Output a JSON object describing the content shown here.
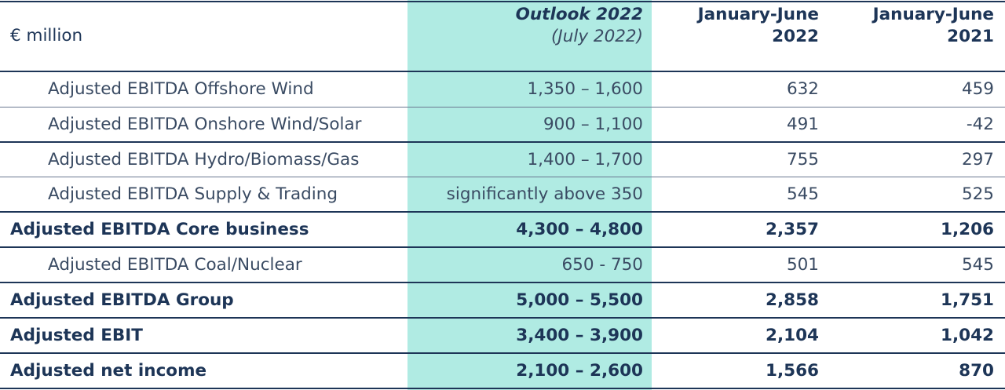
{
  "header": {
    "unit": "€ million",
    "outlook_line1": "Outlook 2022",
    "outlook_line2": "(July 2022)",
    "col2_line1": "January-June",
    "col2_line2": "2022",
    "col3_line1": "January-June",
    "col3_line2": "2021"
  },
  "rows": [
    {
      "label": "Adjusted EBITDA Offshore Wind",
      "outlook": "1,350 – 1,600",
      "h1_2022": "632",
      "h1_2021": "459"
    },
    {
      "label": "Adjusted EBITDA Onshore Wind/Solar",
      "outlook": "900 – 1,100",
      "h1_2022": "491",
      "h1_2021": "-42"
    },
    {
      "label": "Adjusted EBITDA Hydro/Biomass/Gas",
      "outlook": "1,400 – 1,700",
      "h1_2022": "755",
      "h1_2021": "297"
    },
    {
      "label": "Adjusted EBITDA Supply & Trading",
      "outlook": "significantly above 350",
      "h1_2022": "545",
      "h1_2021": "525"
    },
    {
      "label": "Adjusted EBITDA Core business",
      "outlook": "4,300 – 4,800",
      "h1_2022": "2,357",
      "h1_2021": "1,206"
    },
    {
      "label": "Adjusted EBITDA Coal/Nuclear",
      "outlook": "650 - 750",
      "h1_2022": "501",
      "h1_2021": "545"
    },
    {
      "label": "Adjusted EBITDA Group",
      "outlook": "5,000 – 5,500",
      "h1_2022": "2,858",
      "h1_2021": "1,751"
    },
    {
      "label": "Adjusted EBIT",
      "outlook": "3,400 – 3,900",
      "h1_2022": "2,104",
      "h1_2021": "1,042"
    },
    {
      "label": "Adjusted net income",
      "outlook": "2,100 – 2,600",
      "h1_2022": "1,566",
      "h1_2021": "870"
    }
  ],
  "colors": {
    "text": "#1d3557",
    "highlight": "#b0ebe3"
  }
}
